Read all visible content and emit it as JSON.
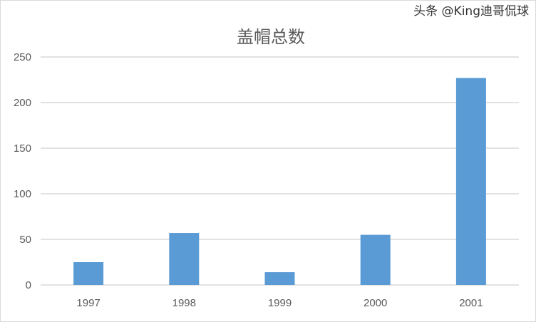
{
  "chart_data": {
    "type": "bar",
    "title": "盖帽总数",
    "categories": [
      "1997",
      "1998",
      "1999",
      "2000",
      "2001"
    ],
    "values": [
      25,
      57,
      14,
      55,
      227
    ],
    "ylim": [
      0,
      250
    ],
    "yticks": [
      0,
      50,
      100,
      150,
      200,
      250
    ],
    "grid": true,
    "bar_color": "#5b9bd5"
  },
  "watermark": "头条 @King迪哥侃球"
}
